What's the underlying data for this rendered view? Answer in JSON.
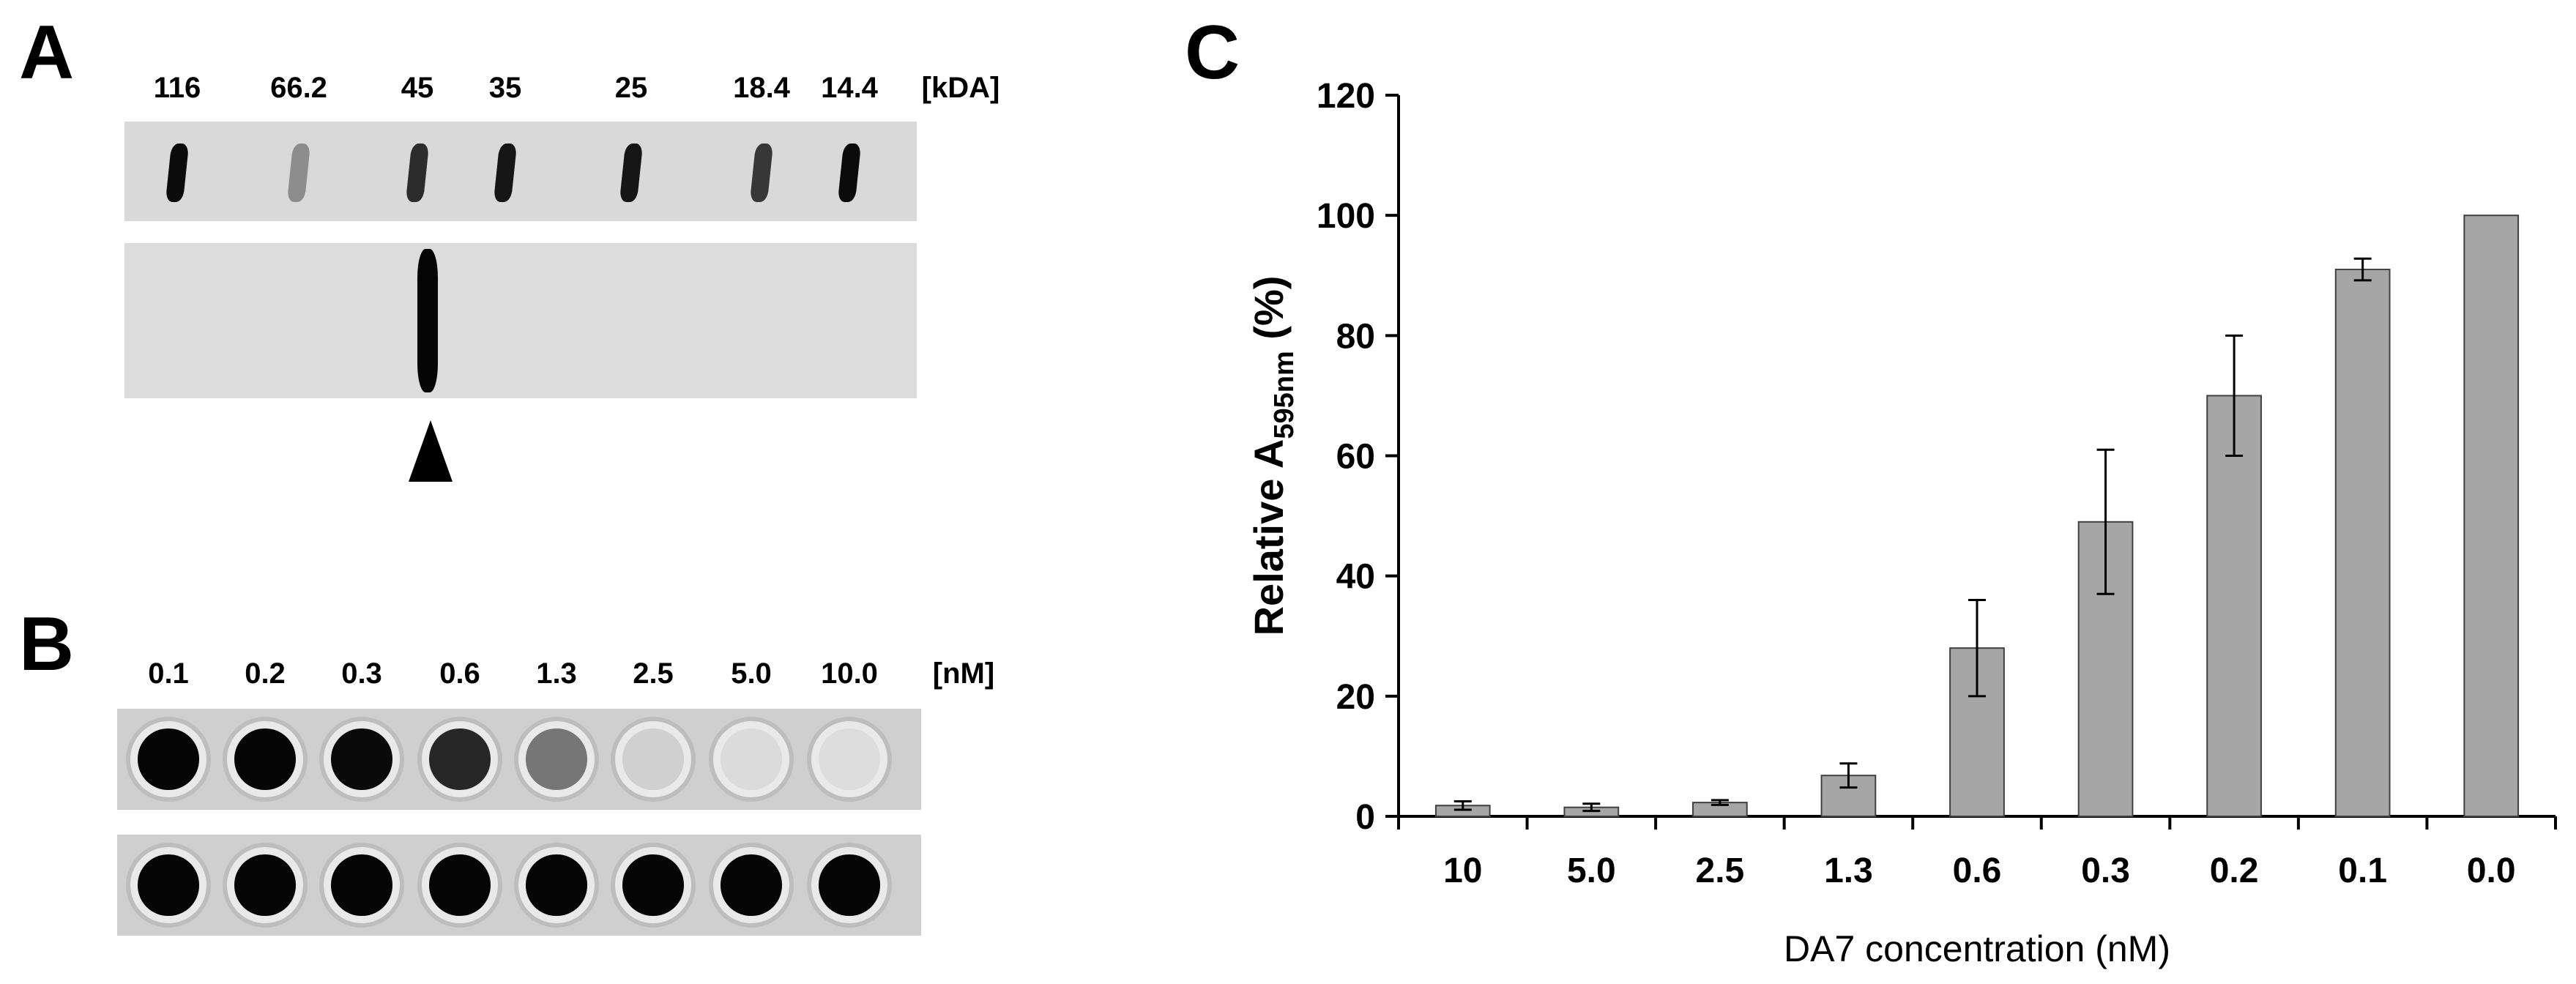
{
  "panels": {
    "a": {
      "letter": "A",
      "markers": [
        "116",
        "66.2",
        "45",
        "35",
        "25",
        "18.4",
        "14.4"
      ],
      "unit": "[kDA]"
    },
    "b": {
      "letter": "B",
      "concentrations": [
        "0.1",
        "0.2",
        "0.3",
        "0.6",
        "1.3",
        "2.5",
        "5.0",
        "10.0"
      ],
      "unit": "[nM]",
      "row1_darkness": [
        1.0,
        1.0,
        0.98,
        0.85,
        0.5,
        0.1,
        0.05,
        0.04
      ],
      "row2_darkness": [
        1.0,
        1.0,
        1.0,
        1.0,
        1.0,
        1.0,
        1.0,
        1.0
      ]
    },
    "c": {
      "letter": "C"
    }
  },
  "chart_data": {
    "type": "bar",
    "categories": [
      "10",
      "5.0",
      "2.5",
      "1.3",
      "0.6",
      "0.3",
      "0.2",
      "0.1",
      "0.0"
    ],
    "series": [
      {
        "values": [
          1.8,
          1.5,
          2.3,
          6.8,
          28,
          49,
          70,
          91,
          100
        ],
        "errors": [
          0.7,
          0.6,
          0.4,
          2.0,
          8,
          12,
          10,
          1.8,
          0
        ]
      }
    ],
    "xlabel": "DA7 concentration (nM)",
    "ylabel_main": "Relative A",
    "ylabel_sub": "595nm",
    "ylabel_tail": " (%)",
    "yticks": [
      0,
      20,
      40,
      60,
      80,
      100,
      120
    ],
    "ylim": [
      0,
      120
    ],
    "grid": false,
    "bar_color": "#a6a6a6"
  }
}
